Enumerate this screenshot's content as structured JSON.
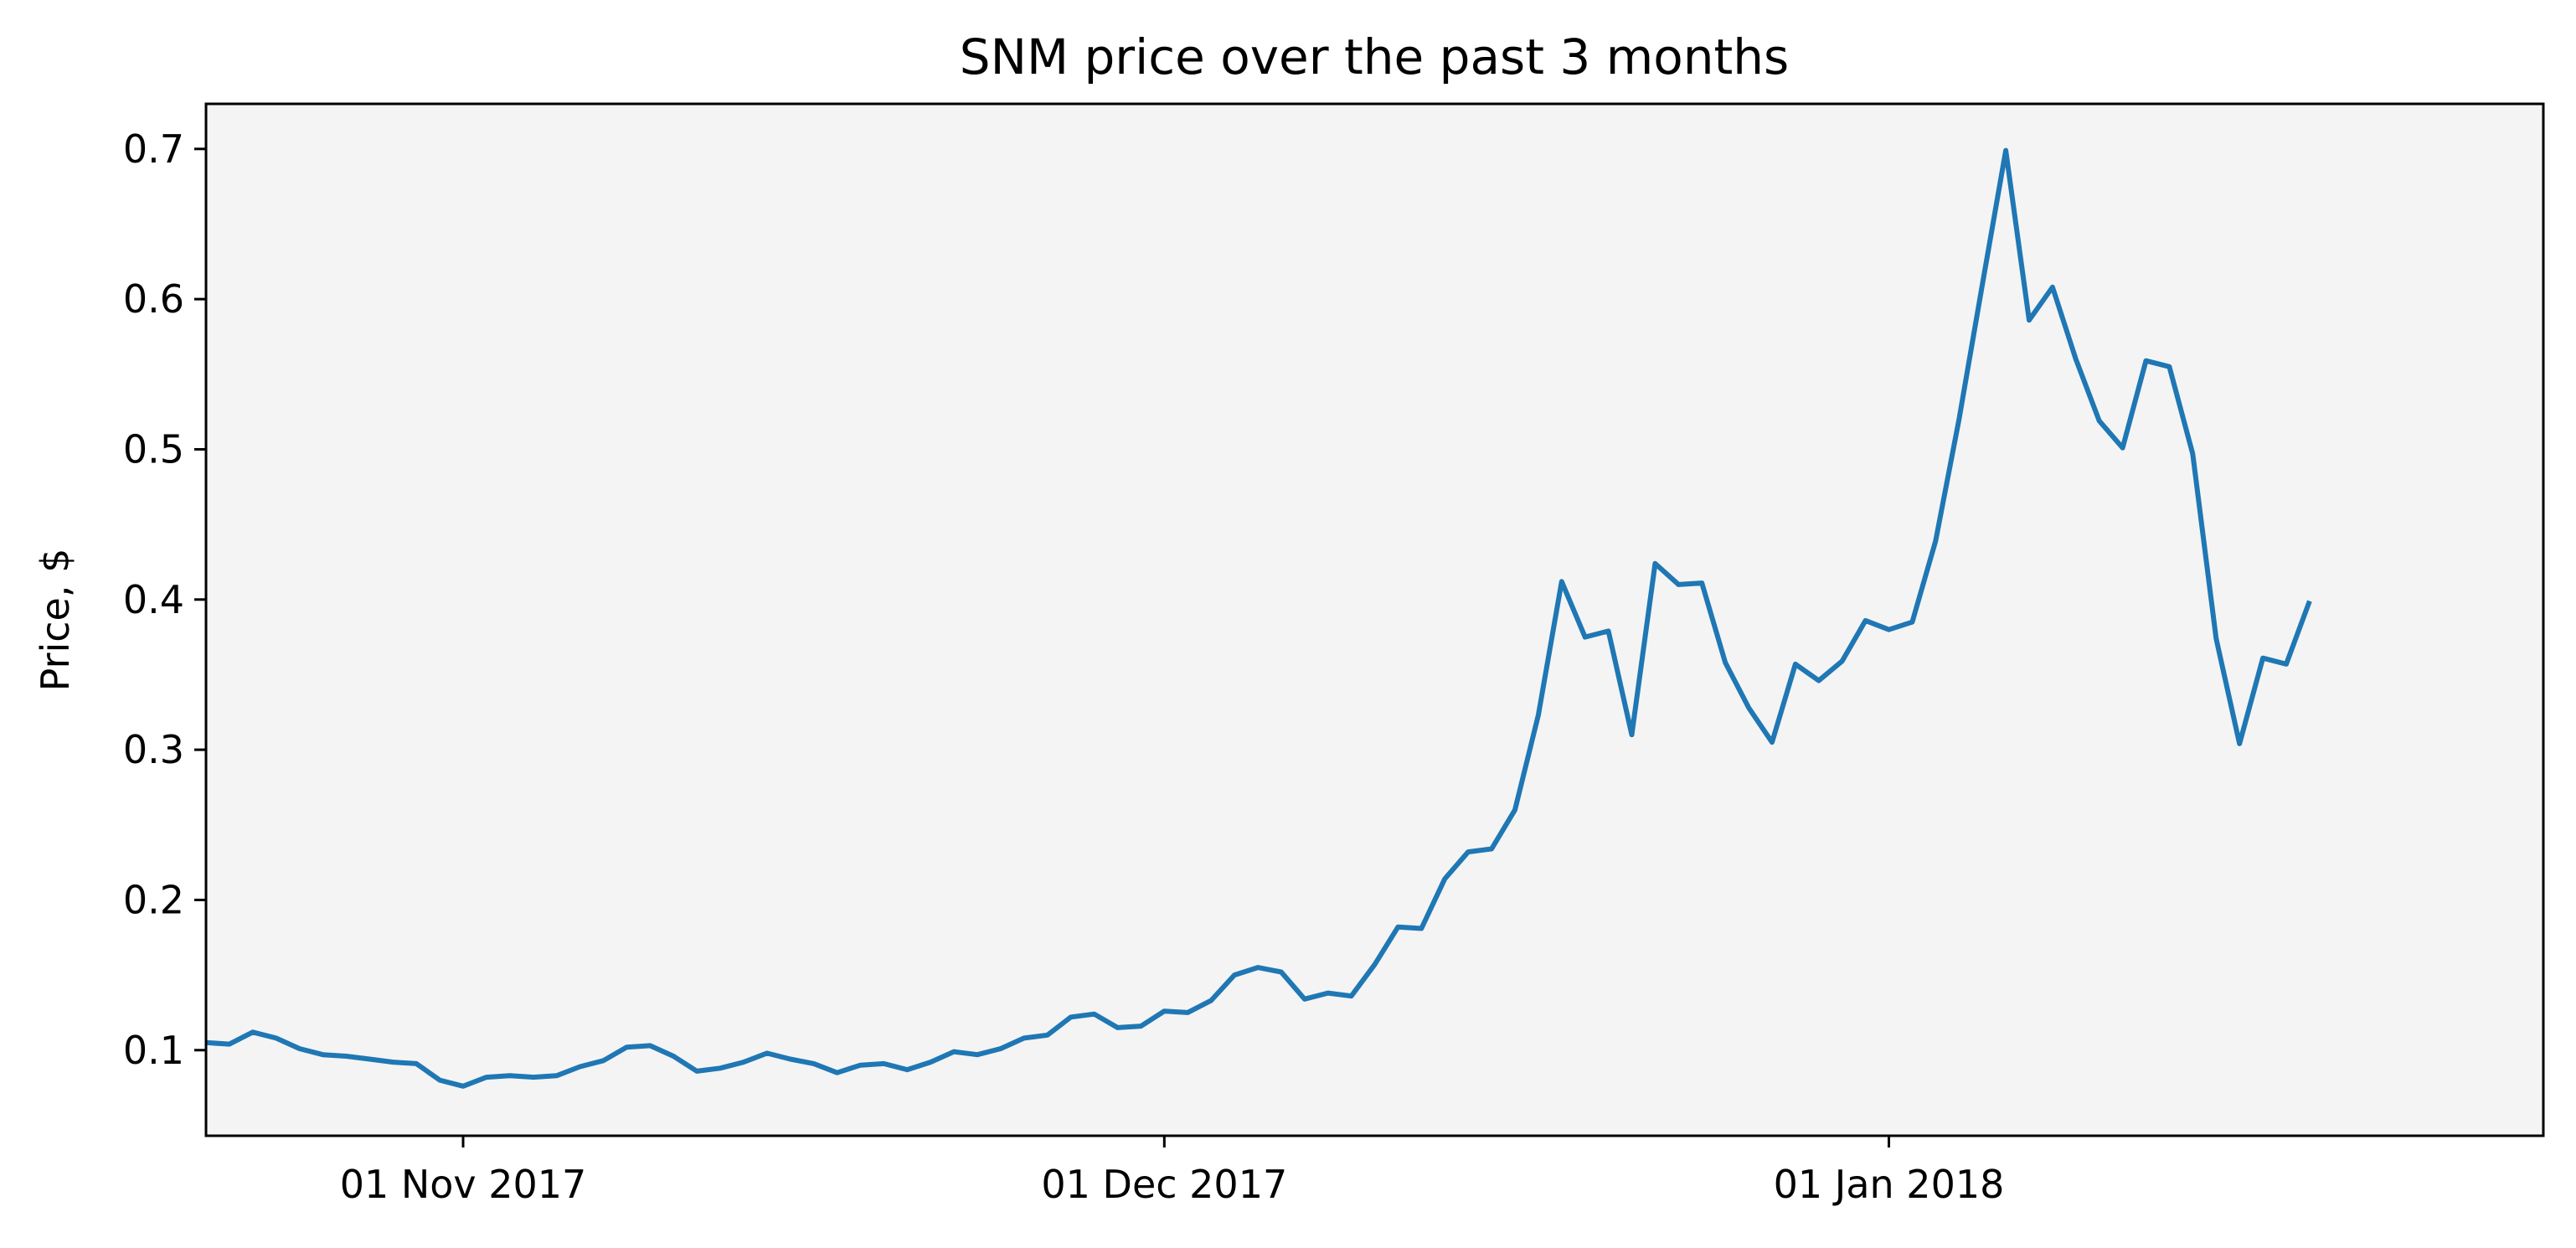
{
  "chart_data": {
    "type": "line",
    "title": "SNM price over the past 3 months",
    "xlabel": "",
    "ylabel": "Price, $",
    "x_start_date": "2017-10-21",
    "x_step_days": 1,
    "xlim": [
      0,
      100
    ],
    "ylim": [
      0.043,
      0.73
    ],
    "yticks": [
      0.1,
      0.2,
      0.3,
      0.4,
      0.5,
      0.6,
      0.7
    ],
    "ytick_labels": [
      "0.1",
      "0.2",
      "0.3",
      "0.4",
      "0.5",
      "0.6",
      "0.7"
    ],
    "xticks": [
      11,
      41,
      72
    ],
    "xtick_labels": [
      "01 Nov 2017",
      "01 Dec 2017",
      "01 Jan 2018"
    ],
    "plot_background": "#f4f4f4",
    "grid": false,
    "series": [
      {
        "name": "SNM",
        "color": "#1f77b4",
        "values": [
          0.105,
          0.104,
          0.112,
          0.108,
          0.101,
          0.097,
          0.096,
          0.094,
          0.092,
          0.091,
          0.08,
          0.076,
          0.082,
          0.083,
          0.082,
          0.083,
          0.089,
          0.093,
          0.102,
          0.103,
          0.096,
          0.086,
          0.088,
          0.092,
          0.098,
          0.094,
          0.091,
          0.085,
          0.09,
          0.091,
          0.087,
          0.092,
          0.099,
          0.097,
          0.101,
          0.108,
          0.11,
          0.122,
          0.124,
          0.115,
          0.116,
          0.126,
          0.125,
          0.133,
          0.15,
          0.155,
          0.152,
          0.134,
          0.138,
          0.136,
          0.157,
          0.182,
          0.181,
          0.214,
          0.232,
          0.234,
          0.26,
          0.323,
          0.412,
          0.375,
          0.379,
          0.31,
          0.424,
          0.41,
          0.411,
          0.358,
          0.328,
          0.305,
          0.357,
          0.346,
          0.359,
          0.386,
          0.38,
          0.385,
          0.439,
          0.52,
          0.61,
          0.699,
          0.586,
          0.608,
          0.56,
          0.519,
          0.501,
          0.559,
          0.555,
          0.497,
          0.374,
          0.304,
          0.361,
          0.357,
          0.399
        ]
      }
    ]
  }
}
